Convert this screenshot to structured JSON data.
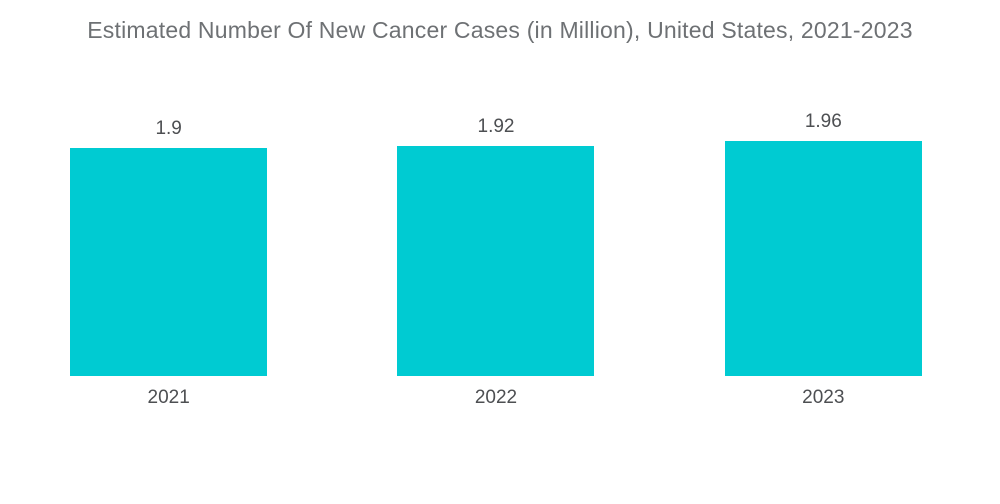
{
  "title": "Estimated Number Of New Cancer Cases (in Million), United States, 2021-2023",
  "colors": {
    "bar": "#00cbd2",
    "title_text": "#6e7174",
    "label_text": "#4d4f52",
    "background": "#ffffff"
  },
  "chart_data": {
    "type": "bar",
    "title": "Estimated Number Of New Cancer Cases (in Million), United States, 2021-2023",
    "categories": [
      "2021",
      "2022",
      "2023"
    ],
    "values": [
      1.9,
      1.92,
      1.96
    ],
    "value_labels": [
      "1.9",
      "1.92",
      "1.96"
    ],
    "xlabel": "",
    "ylabel": "",
    "ylim": [
      0,
      2
    ],
    "grid": false,
    "legend": "none",
    "axes_visible": false,
    "bar_color": "#00cbd2",
    "pixels_per_unit": 120
  }
}
